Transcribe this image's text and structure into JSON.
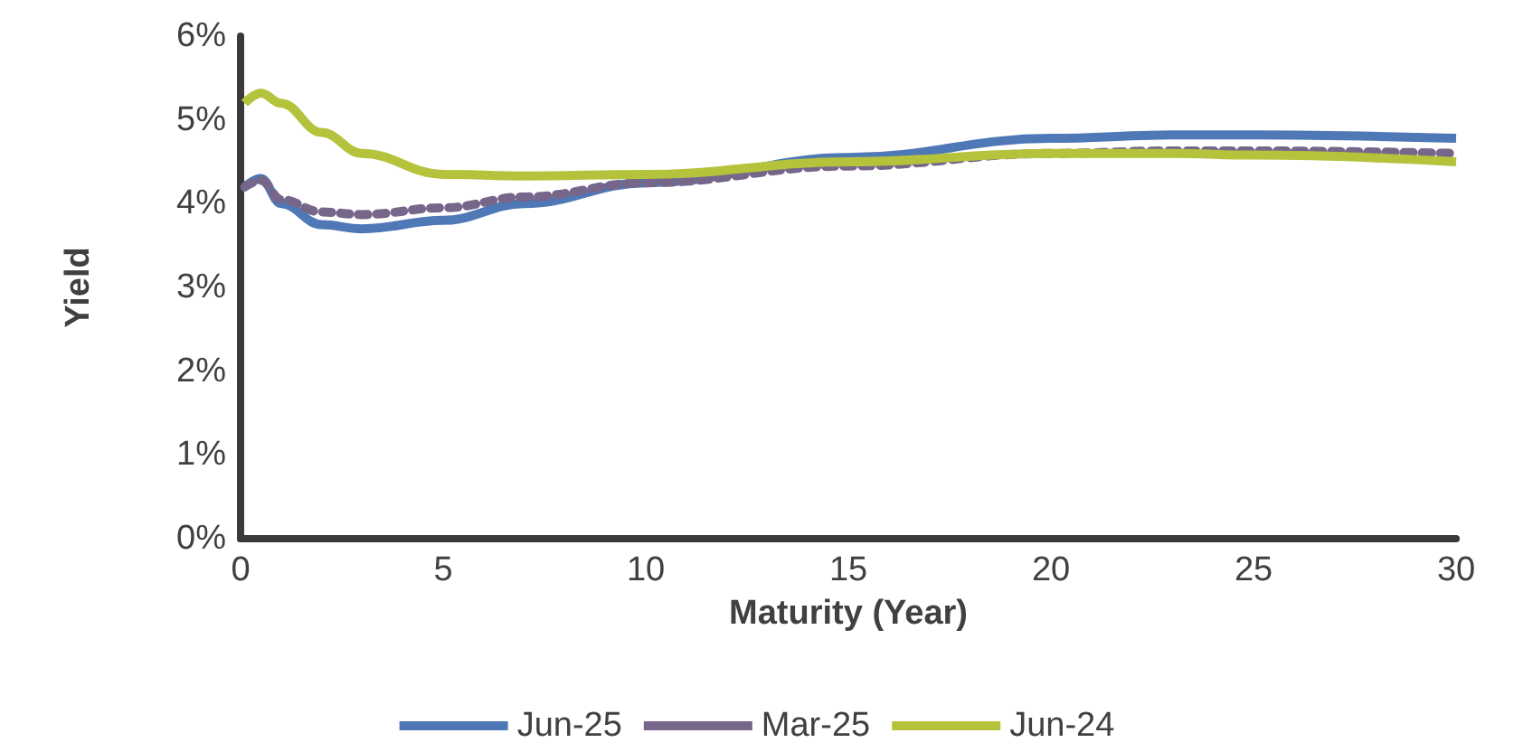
{
  "chart_data": {
    "type": "line",
    "xlabel": "Maturity (Year)",
    "ylabel": "Yield",
    "xlim": [
      0,
      30
    ],
    "xticks": [
      0,
      5,
      10,
      15,
      20,
      25,
      30
    ],
    "ylim": [
      0,
      6
    ],
    "yticks": [
      {
        "value": 0,
        "label": "0%"
      },
      {
        "value": 1,
        "label": "1%"
      },
      {
        "value": 2,
        "label": "2%"
      },
      {
        "value": 3,
        "label": "3%"
      },
      {
        "value": 4,
        "label": "4%"
      },
      {
        "value": 5,
        "label": "5%"
      },
      {
        "value": 6,
        "label": "6%"
      }
    ],
    "grid": false,
    "legend": "bottom",
    "marker": "none",
    "x": [
      0.1,
      0.5,
      1,
      2,
      3,
      5,
      7,
      10,
      15,
      20,
      23,
      25,
      30
    ],
    "series": [
      {
        "name": "Jun-25",
        "color": "#4f78b6",
        "line_style": "solid",
        "values": [
          4.2,
          4.3,
          4.0,
          3.75,
          3.7,
          3.8,
          4.0,
          4.25,
          4.55,
          4.78,
          4.82,
          4.82,
          4.78
        ]
      },
      {
        "name": "Mar-25",
        "color": "#75668a",
        "line_style": "dotted",
        "values": [
          4.2,
          4.28,
          4.05,
          3.9,
          3.87,
          3.95,
          4.08,
          4.25,
          4.45,
          4.6,
          4.63,
          4.63,
          4.6
        ]
      },
      {
        "name": "Jun-24",
        "color": "#b5c33c",
        "line_style": "solid",
        "values": [
          5.2,
          5.32,
          5.2,
          4.85,
          4.6,
          4.35,
          4.33,
          4.35,
          4.5,
          4.6,
          4.6,
          4.58,
          4.5
        ]
      }
    ]
  }
}
